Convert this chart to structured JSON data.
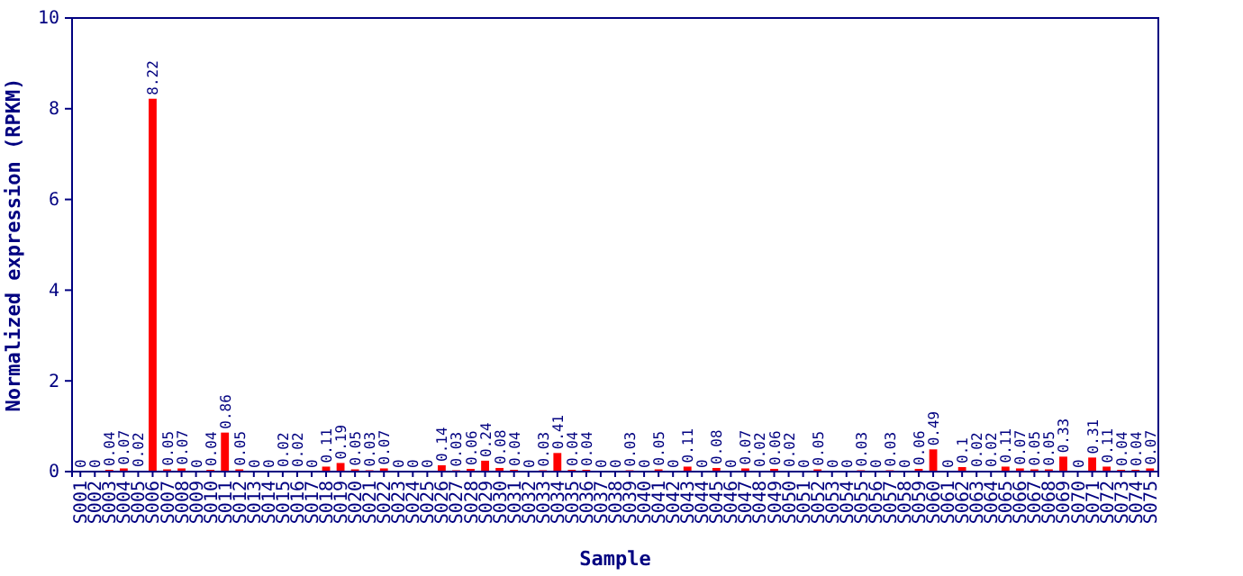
{
  "chart_data": {
    "type": "bar",
    "xlabel": "Sample",
    "ylabel": "Normalized expression (RPKM)",
    "categories": [
      "S001",
      "S002",
      "S003",
      "S004",
      "S005",
      "S006",
      "S007",
      "S008",
      "S009",
      "S010",
      "S011",
      "S012",
      "S013",
      "S014",
      "S015",
      "S016",
      "S017",
      "S018",
      "S019",
      "S020",
      "S021",
      "S022",
      "S023",
      "S024",
      "S025",
      "S026",
      "S027",
      "S028",
      "S029",
      "S030",
      "S031",
      "S032",
      "S033",
      "S034",
      "S035",
      "S036",
      "S037",
      "S038",
      "S039",
      "S040",
      "S041",
      "S042",
      "S043",
      "S044",
      "S045",
      "S046",
      "S047",
      "S048",
      "S049",
      "S050",
      "S051",
      "S052",
      "S053",
      "S054",
      "S055",
      "S056",
      "S057",
      "S058",
      "S059",
      "S060",
      "S061",
      "S062",
      "S063",
      "S064",
      "S065",
      "S066",
      "S067",
      "S068",
      "S069",
      "S070",
      "S071",
      "S072",
      "S073",
      "S074",
      "S075"
    ],
    "values": [
      0,
      0,
      0.04,
      0.07,
      0.02,
      8.22,
      0.05,
      0.07,
      0,
      0.04,
      0.86,
      0.05,
      0,
      0,
      0.02,
      0.02,
      0,
      0.11,
      0.19,
      0.05,
      0.03,
      0.07,
      0,
      0,
      0,
      0.14,
      0.03,
      0.06,
      0.24,
      0.08,
      0.04,
      0,
      0.03,
      0.41,
      0.04,
      0.04,
      0,
      0,
      0.03,
      0,
      0.05,
      0,
      0.11,
      0,
      0.08,
      0,
      0.07,
      0.02,
      0.06,
      0.02,
      0,
      0.05,
      0,
      0,
      0.03,
      0,
      0.03,
      0,
      0.06,
      0.49,
      0,
      0.1,
      0.02,
      0.02,
      0.11,
      0.07,
      0.05,
      0.05,
      0.33,
      0,
      0.31,
      0.11,
      0.04,
      0.04,
      0.07
    ],
    "color": "#ff0000",
    "ylim": [
      0,
      10
    ],
    "yticks": [
      0,
      2,
      4,
      6,
      8,
      10
    ],
    "data_labels": true,
    "grid": false
  }
}
